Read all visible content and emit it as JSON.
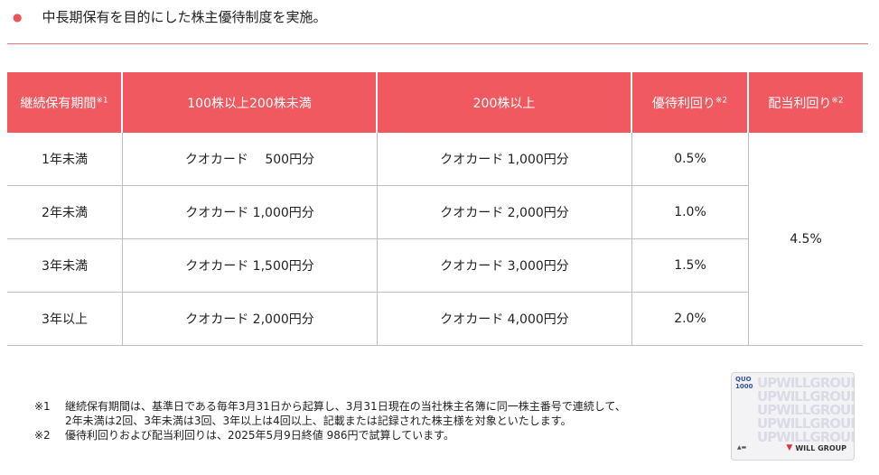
{
  "heading": "中長期保有を目的にした株主優待制度を実施。",
  "table": {
    "headers": [
      "継続保有期間",
      "100株以上200株未満",
      "200株以上",
      "優待利回り",
      "配当利回り"
    ],
    "header_marks": [
      "※1",
      "",
      "",
      "※2",
      "※2"
    ],
    "rows": [
      {
        "period": "1年未満",
        "tier1": "クオカード　 500円分",
        "tier2": "クオカード 1,000円分",
        "yield": "0.5%"
      },
      {
        "period": "2年未満",
        "tier1": "クオカード 1,000円分",
        "tier2": "クオカード 2,000円分",
        "yield": "1.0%"
      },
      {
        "period": "3年未満",
        "tier1": "クオカード 1,500円分",
        "tier2": "クオカード 3,000円分",
        "yield": "1.5%"
      },
      {
        "period": "3年以上",
        "tier1": "クオカード 2,000円分",
        "tier2": "クオカード 4,000円分",
        "yield": "2.0%"
      }
    ],
    "dividend_yield": "4.5%"
  },
  "notes": [
    {
      "mark": "※1",
      "line1": "継続保有期間は、基準日である毎年3月31日から起算し、3月31日現在の当社株主名簿に同一株主番号で連続して、",
      "line2": "2年未満は2回、3年未満は3回、3年以上は4回以上、記載または記録された株主様を対象といたします。"
    },
    {
      "mark": "※2",
      "line1": "優待利回りおよび配当利回りは、2025年5月9日終値 986円で試算しています。"
    }
  ],
  "card": {
    "logo_line1": "QUO",
    "logo_line2": "1000",
    "pattern": "UPWILLGROUP",
    "brand": "WILL GROUP"
  },
  "colors": {
    "accent": "#f0595f",
    "divider": "#e8747a"
  }
}
